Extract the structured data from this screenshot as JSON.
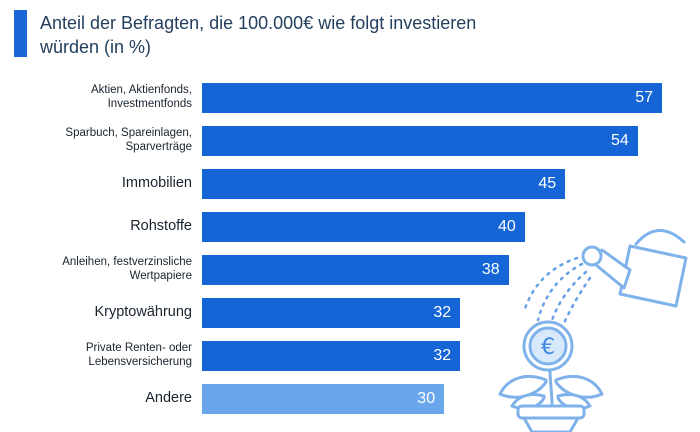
{
  "header": {
    "title": "Anteil der Befragten, die 100.000€ wie folgt investieren würden (in %)"
  },
  "colors": {
    "accent": "#1a67d6",
    "bar": "#1565d6",
    "bar_highlight": "#6aa6ec",
    "title_text": "#24405e",
    "label_text": "#18232e",
    "value_text": "#ffffff",
    "illustration_stroke": "#7fb2ea"
  },
  "icons": {
    "illustration": "watering-can-watering-euro-coin-flower-in-pot"
  },
  "chart_data": {
    "type": "bar",
    "orientation": "horizontal",
    "title": "Anteil der Befragten, die 100.000€ wie folgt investieren würden (in %)",
    "categories": [
      "Aktien, Aktienfonds, Investmentfonds",
      "Sparbuch, Spareinlagen, Sparverträge",
      "Immobilien",
      "Rohstoffe",
      "Anleihen, festverzinsliche Wertpapiere",
      "Kryptowährung",
      "Private Renten- oder Lebensversicherung",
      "Andere"
    ],
    "values": [
      57,
      54,
      45,
      40,
      38,
      32,
      32,
      30
    ],
    "value_suffix": "",
    "xlim": [
      0,
      60
    ],
    "grid": false,
    "legend": false,
    "value_labels": "inside-end",
    "rows": [
      {
        "label": "Aktien, Aktienfonds,\nInvestmentfonds",
        "value": 57,
        "small": true,
        "highlight": false
      },
      {
        "label": "Sparbuch, Spareinlagen,\nSparverträge",
        "value": 54,
        "small": true,
        "highlight": false
      },
      {
        "label": "Immobilien",
        "value": 45,
        "small": false,
        "highlight": false
      },
      {
        "label": "Rohstoffe",
        "value": 40,
        "small": false,
        "highlight": false
      },
      {
        "label": "Anleihen, festverzinsliche\nWertpapiere",
        "value": 38,
        "small": true,
        "highlight": false
      },
      {
        "label": "Kryptowährung",
        "value": 32,
        "small": false,
        "highlight": false
      },
      {
        "label": "Private Renten- oder\nLebensversicherung",
        "value": 32,
        "small": true,
        "highlight": false
      },
      {
        "label": "Andere",
        "value": 30,
        "small": false,
        "highlight": true
      }
    ]
  }
}
